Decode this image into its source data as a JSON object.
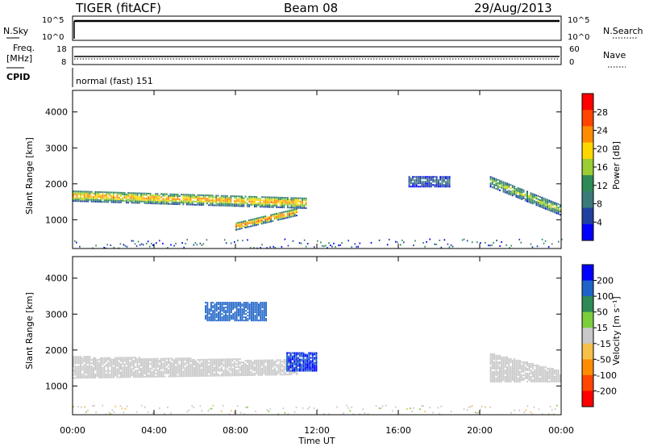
{
  "header": {
    "title": "TIGER (fitACF)",
    "beam": "Beam 08",
    "date": "29/Aug/2013"
  },
  "top_panels": {
    "nsky_label": "N.Sky",
    "nsearch_label": "N.Search",
    "nsky_ticks": [
      "10^5",
      "10^0"
    ],
    "nsearch_ticks": [
      "10^5",
      "10^0"
    ],
    "freq_label": "Freq.",
    "freq_unit": "[MHz]",
    "freq_ticks": [
      "18",
      "8"
    ],
    "nave_label": "Nave",
    "nave_ticks": [
      "60",
      "0"
    ],
    "cpid_label": "CPID",
    "cpid_text": "normal (fast) 151"
  },
  "power_panel": {
    "ylabel": "Slant Range [km]",
    "yticks": [
      "4000",
      "3000",
      "2000",
      "1000"
    ],
    "colorbar_label": "Power [dB]",
    "colorbar_ticks": [
      "28",
      "24",
      "20",
      "16",
      "12",
      "8",
      "4"
    ],
    "colors": [
      "#0000ff",
      "#2040a0",
      "#3a7a7a",
      "#2e8b57",
      "#9acd32",
      "#ffd700",
      "#ff8c00",
      "#ff4500",
      "#ff0000"
    ]
  },
  "velocity_panel": {
    "ylabel": "Slant Range [km]",
    "yticks": [
      "4000",
      "3000",
      "2000",
      "1000"
    ],
    "colorbar_label": "Velocity [m s⁻¹]",
    "colorbar_ticks": [
      "200",
      "100",
      "50",
      "15",
      "-15",
      "-50",
      "-100",
      "-200"
    ],
    "colors": [
      "#0000ff",
      "#1e64c8",
      "#2e8b57",
      "#7ccd3c",
      "#c8c8c8",
      "#f5c04a",
      "#ff8c00",
      "#ff4500",
      "#ff0000"
    ]
  },
  "xaxis": {
    "label": "Time UT",
    "ticks": [
      "00:00",
      "04:00",
      "08:00",
      "12:00",
      "16:00",
      "20:00",
      "00:00"
    ]
  },
  "chart_data": [
    {
      "type": "heatmap",
      "name": "power",
      "xlabel": "Time UT",
      "ylabel": "Slant Range [km]",
      "xlim": [
        0,
        24
      ],
      "ylim": [
        200,
        4600
      ],
      "colorbar": {
        "label": "Power [dB]",
        "range": [
          0,
          32
        ],
        "ticks": [
          4,
          8,
          12,
          16,
          20,
          24,
          28
        ]
      },
      "regions": [
        {
          "t": [
            0,
            11.5
          ],
          "r_start": [
            1500,
            1800
          ],
          "r_end": [
            1300,
            1600
          ],
          "power": 24
        },
        {
          "t": [
            8,
            11
          ],
          "r_start": [
            700,
            900
          ],
          "r_end": [
            1100,
            1300
          ],
          "power": 26
        },
        {
          "t": [
            20.5,
            24
          ],
          "r_start": [
            1900,
            2200
          ],
          "r_end": [
            1100,
            1400
          ],
          "power": 18
        },
        {
          "t": [
            16.5,
            18.5
          ],
          "r_start": [
            1900,
            2200
          ],
          "r_end": [
            1900,
            2200
          ],
          "power": 8
        }
      ]
    },
    {
      "type": "heatmap",
      "name": "velocity",
      "xlabel": "Time UT",
      "ylabel": "Slant Range [km]",
      "xlim": [
        0,
        24
      ],
      "ylim": [
        200,
        4600
      ],
      "colorbar": {
        "label": "Velocity [m s⁻¹]",
        "range": [
          -250,
          250
        ],
        "ticks": [
          -200,
          -100,
          -50,
          -15,
          15,
          50,
          100,
          200
        ]
      },
      "regions": [
        {
          "t": [
            0,
            11
          ],
          "r_start": [
            1200,
            1800
          ],
          "r_end": [
            1300,
            1700
          ],
          "velocity": 0
        },
        {
          "t": [
            10.5,
            12
          ],
          "r_start": [
            1400,
            1900
          ],
          "r_end": [
            1400,
            1900
          ],
          "velocity": 200
        },
        {
          "t": [
            6.5,
            9.5
          ],
          "r_start": [
            2800,
            3300
          ],
          "r_end": [
            2800,
            3300
          ],
          "velocity": 150
        },
        {
          "t": [
            20.5,
            24
          ],
          "r_start": [
            1100,
            1900
          ],
          "r_end": [
            1100,
            1400
          ],
          "velocity": 0
        }
      ]
    }
  ]
}
